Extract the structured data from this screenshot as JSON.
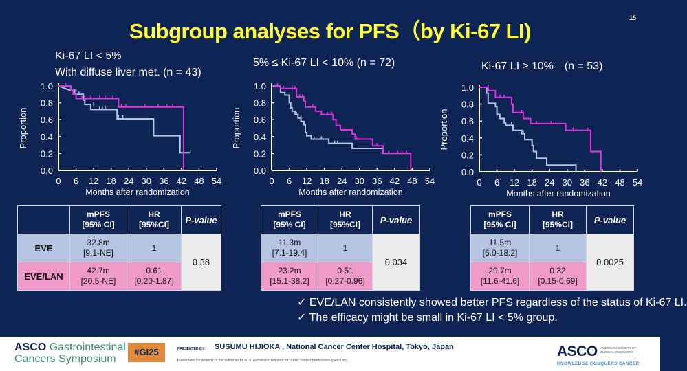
{
  "slide": {
    "title": "Subgroup analyses for PFS（by Ki-67 LI)",
    "number": "15",
    "colors": {
      "background": "#0e2454",
      "title": "#ffff33",
      "eve_line": "#b5c4e1",
      "lan_line": "#e033e0",
      "eve_row": "#b5c4e1",
      "lan_row": "#ef9ac9"
    }
  },
  "panels": [
    {
      "subtitle_line1": "Ki-67 LI < 5%",
      "subtitle_line2": "With diffuse liver met. (n = 43)",
      "table": {
        "headers": [
          "",
          "mPFS\n[95% CI]",
          "HR\n[95%CI]",
          "P-value"
        ],
        "header_mpfs_1": "mPFS",
        "header_mpfs_2": "[95% CI]",
        "header_hr_1": "HR",
        "header_hr_2": "[95%CI]",
        "header_p": "P-value",
        "eve": {
          "label": "EVE",
          "mpfs": "32.8m",
          "mpfs_ci": "[9.1-NE]",
          "hr": "1",
          "hr_ci": ""
        },
        "lan": {
          "label": "EVE/LAN",
          "mpfs": "42.7m",
          "mpfs_ci": "[20.5-NE]",
          "hr": "0.61",
          "hr_ci": "[0.20-1.87]"
        },
        "p_value": "0.38"
      }
    },
    {
      "subtitle_line1": "5% ≤ Ki-67 LI < 10% (n = 72)",
      "subtitle_line2": "",
      "table": {
        "header_mpfs_1": "mPFS",
        "header_mpfs_2": "[95% CI]",
        "header_hr_1": "HR",
        "header_hr_2": "[95%CI]",
        "header_p": "P-value",
        "eve": {
          "label": "EVE",
          "mpfs": "11.3m",
          "mpfs_ci": "[7.1-19.4]",
          "hr": "1",
          "hr_ci": ""
        },
        "lan": {
          "label": "EVE/LAN",
          "mpfs": "23.2m",
          "mpfs_ci": "[15.1-38.2]",
          "hr": "0.51",
          "hr_ci": "[0.27-0.96]"
        },
        "p_value": "0.034"
      }
    },
    {
      "subtitle_line1": "Ki-67 LI ≥ 10%　(n = 53)",
      "subtitle_line2": "",
      "table": {
        "header_mpfs_1": "mPFS",
        "header_mpfs_2": "[95% CI]",
        "header_hr_1": "HR",
        "header_hr_2": "[95%CI]",
        "header_p": "P-value",
        "eve": {
          "label": "EVE",
          "mpfs": "11.5m",
          "mpfs_ci": "[6.0-18.2]",
          "hr": "1",
          "hr_ci": ""
        },
        "lan": {
          "label": "EVE/LAN",
          "mpfs": "29.7m",
          "mpfs_ci": "[11.6-41.6]",
          "hr": "0.32",
          "hr_ci": "[0.15-0.69]"
        },
        "p_value": "0.0025"
      }
    }
  ],
  "chart_data": [
    {
      "type": "line",
      "subtype": "kaplan-meier-step",
      "title": "Ki-67 LI < 5% With diffuse liver met. (n = 43)",
      "xlabel": "Months after randomization",
      "ylabel": "Proportion",
      "xlim": [
        0,
        54
      ],
      "ylim": [
        0,
        1.0
      ],
      "xticks": [
        "0",
        "6",
        "12",
        "18",
        "24",
        "30",
        "36",
        "42",
        "48",
        "54"
      ],
      "yticks": [
        "0.0",
        "0.2",
        "0.4",
        "0.6",
        "0.8",
        "1.0"
      ],
      "series": [
        {
          "name": "EVE",
          "color": "#b5c4e1",
          "steps": [
            [
              0,
              1.0
            ],
            [
              3.8,
              0.95
            ],
            [
              5.5,
              0.95
            ],
            [
              5.5,
              0.9
            ],
            [
              8.5,
              0.9
            ],
            [
              8.5,
              0.83
            ],
            [
              9,
              0.83
            ],
            [
              9,
              0.78
            ],
            [
              11,
              0.78
            ],
            [
              11,
              0.72
            ],
            [
              20,
              0.72
            ],
            [
              20,
              0.61
            ],
            [
              32.5,
              0.61
            ],
            [
              32.5,
              0.41
            ],
            [
              41.5,
              0.41
            ],
            [
              41.5,
              0.21
            ],
            [
              45,
              0.21
            ]
          ],
          "censors": [
            [
              6,
              0.93
            ],
            [
              7,
              0.9
            ],
            [
              12,
              0.77
            ],
            [
              14,
              0.72
            ],
            [
              15,
              0.72
            ],
            [
              16,
              0.72
            ],
            [
              20.5,
              0.62
            ],
            [
              22,
              0.62
            ],
            [
              45,
              0.21
            ]
          ]
        },
        {
          "name": "EVE/LAN",
          "color": "#e033e0",
          "steps": [
            [
              0,
              1.0
            ],
            [
              4.2,
              1.0
            ],
            [
              4.2,
              0.95
            ],
            [
              5,
              0.95
            ],
            [
              5,
              0.9
            ],
            [
              6,
              0.9
            ],
            [
              6,
              0.85
            ],
            [
              20.5,
              0.85
            ],
            [
              20.5,
              0.75
            ],
            [
              42.7,
              0.75
            ],
            [
              42.7,
              0.0
            ]
          ],
          "censors": [
            [
              2.5,
              1.0
            ],
            [
              8,
              0.85
            ],
            [
              9,
              0.85
            ],
            [
              11,
              0.85
            ],
            [
              14,
              0.85
            ],
            [
              16,
              0.85
            ],
            [
              18.5,
              0.85
            ],
            [
              21.5,
              0.75
            ],
            [
              23,
              0.75
            ],
            [
              29.5,
              0.75
            ],
            [
              34,
              0.75
            ],
            [
              37,
              0.75
            ],
            [
              39,
              0.75
            ]
          ]
        }
      ]
    },
    {
      "type": "line",
      "subtype": "kaplan-meier-step",
      "title": "5% ≤ Ki-67 LI < 10% (n = 72)",
      "xlabel": "Months after randomization",
      "ylabel": "Proportion",
      "xlim": [
        0,
        54
      ],
      "ylim": [
        0,
        1.0
      ],
      "xticks": [
        "0",
        "6",
        "12",
        "18",
        "24",
        "30",
        "36",
        "42",
        "48",
        "54"
      ],
      "yticks": [
        "0.0",
        "0.2",
        "0.4",
        "0.6",
        "0.8",
        "1.0"
      ],
      "series": [
        {
          "name": "EVE",
          "color": "#b5c4e1",
          "steps": [
            [
              0,
              1.0
            ],
            [
              3,
              1.0
            ],
            [
              3,
              0.92
            ],
            [
              4.5,
              0.92
            ],
            [
              4.5,
              0.89
            ],
            [
              6,
              0.89
            ],
            [
              6,
              0.8
            ],
            [
              6.5,
              0.8
            ],
            [
              6.5,
              0.74
            ],
            [
              7,
              0.74
            ],
            [
              7,
              0.7
            ],
            [
              8,
              0.7
            ],
            [
              8,
              0.66
            ],
            [
              9,
              0.66
            ],
            [
              9,
              0.62
            ],
            [
              10,
              0.62
            ],
            [
              10,
              0.58
            ],
            [
              11,
              0.58
            ],
            [
              11,
              0.54
            ],
            [
              11.5,
              0.54
            ],
            [
              11.5,
              0.45
            ],
            [
              12,
              0.45
            ],
            [
              12,
              0.41
            ],
            [
              13.5,
              0.41
            ],
            [
              13.5,
              0.37
            ],
            [
              19.5,
              0.37
            ],
            [
              19.5,
              0.32
            ],
            [
              27.5,
              0.32
            ],
            [
              27.5,
              0.26
            ],
            [
              38,
              0.26
            ],
            [
              38,
              0.2
            ]
          ],
          "censors": [
            [
              8.5,
              0.66
            ],
            [
              10,
              0.62
            ],
            [
              14.5,
              0.37
            ],
            [
              17,
              0.37
            ],
            [
              21.5,
              0.32
            ],
            [
              22.5,
              0.32
            ]
          ]
        },
        {
          "name": "EVE/LAN",
          "color": "#e033e0",
          "steps": [
            [
              0,
              1.0
            ],
            [
              3,
              1.0
            ],
            [
              3,
              0.97
            ],
            [
              8.5,
              0.97
            ],
            [
              8.5,
              0.87
            ],
            [
              11,
              0.87
            ],
            [
              11,
              0.82
            ],
            [
              11.5,
              0.82
            ],
            [
              11.5,
              0.75
            ],
            [
              15,
              0.75
            ],
            [
              15,
              0.7
            ],
            [
              17,
              0.7
            ],
            [
              17,
              0.66
            ],
            [
              21,
              0.66
            ],
            [
              21,
              0.6
            ],
            [
              22,
              0.6
            ],
            [
              22,
              0.53
            ],
            [
              23.5,
              0.53
            ],
            [
              23.5,
              0.48
            ],
            [
              27.5,
              0.48
            ],
            [
              27.5,
              0.43
            ],
            [
              28.5,
              0.43
            ],
            [
              28.5,
              0.37
            ],
            [
              34.5,
              0.37
            ],
            [
              34.5,
              0.29
            ],
            [
              38,
              0.29
            ],
            [
              38,
              0.2
            ],
            [
              47.5,
              0.2
            ],
            [
              47.5,
              0.0
            ]
          ],
          "censors": [
            [
              2,
              1.0
            ],
            [
              4,
              0.97
            ],
            [
              7,
              0.97
            ],
            [
              8,
              0.97
            ],
            [
              9.5,
              0.87
            ],
            [
              10.5,
              0.87
            ],
            [
              14,
              0.75
            ],
            [
              19,
              0.66
            ],
            [
              20.5,
              0.66
            ],
            [
              29,
              0.37
            ],
            [
              36,
              0.29
            ],
            [
              40,
              0.2
            ],
            [
              43,
              0.2
            ],
            [
              44.5,
              0.2
            ],
            [
              46,
              0.2
            ]
          ]
        }
      ]
    },
    {
      "type": "line",
      "subtype": "kaplan-meier-step",
      "title": "Ki-67 LI ≥ 10% (n = 53)",
      "xlabel": "Months after randomization",
      "ylabel": "Proportion",
      "xlim": [
        0,
        54
      ],
      "ylim": [
        0,
        1.0
      ],
      "xticks": [
        "0",
        "6",
        "12",
        "18",
        "24",
        "30",
        "36",
        "42",
        "48",
        "54"
      ],
      "yticks": [
        "0.0",
        "0.2",
        "0.4",
        "0.6",
        "0.8",
        "1.0"
      ],
      "series": [
        {
          "name": "EVE",
          "color": "#b5c4e1",
          "steps": [
            [
              0,
              1.0
            ],
            [
              2.5,
              1.0
            ],
            [
              2.5,
              0.93
            ],
            [
              3,
              0.93
            ],
            [
              3,
              0.81
            ],
            [
              5.5,
              0.81
            ],
            [
              5.5,
              0.77
            ],
            [
              6,
              0.77
            ],
            [
              6,
              0.68
            ],
            [
              7,
              0.68
            ],
            [
              7,
              0.63
            ],
            [
              8.5,
              0.63
            ],
            [
              8.5,
              0.58
            ],
            [
              9,
              0.58
            ],
            [
              9,
              0.55
            ],
            [
              11.5,
              0.55
            ],
            [
              11.5,
              0.49
            ],
            [
              14.5,
              0.49
            ],
            [
              14.5,
              0.45
            ],
            [
              15.5,
              0.45
            ],
            [
              15.5,
              0.38
            ],
            [
              18,
              0.38
            ],
            [
              18,
              0.31
            ],
            [
              18.5,
              0.31
            ],
            [
              18.5,
              0.24
            ],
            [
              19.5,
              0.24
            ],
            [
              19.5,
              0.16
            ],
            [
              23,
              0.16
            ],
            [
              23,
              0.08
            ],
            [
              33,
              0.08
            ],
            [
              33,
              0.0
            ]
          ],
          "censors": [
            [
              11,
              0.56
            ],
            [
              15,
              0.46
            ]
          ]
        },
        {
          "name": "EVE/LAN",
          "color": "#e033e0",
          "steps": [
            [
              0,
              1.0
            ],
            [
              3,
              1.0
            ],
            [
              3,
              0.96
            ],
            [
              5.5,
              0.96
            ],
            [
              5.5,
              0.88
            ],
            [
              11,
              0.88
            ],
            [
              11,
              0.8
            ],
            [
              11.5,
              0.8
            ],
            [
              11.5,
              0.7
            ],
            [
              15,
              0.7
            ],
            [
              15,
              0.63
            ],
            [
              17.5,
              0.63
            ],
            [
              17.5,
              0.57
            ],
            [
              29.5,
              0.57
            ],
            [
              29.5,
              0.49
            ],
            [
              38,
              0.49
            ],
            [
              38,
              0.24
            ],
            [
              41.5,
              0.24
            ],
            [
              41.5,
              0.0
            ]
          ],
          "censors": [
            [
              3,
              1.0
            ],
            [
              7,
              0.88
            ],
            [
              8.5,
              0.88
            ],
            [
              13.5,
              0.7
            ],
            [
              14.5,
              0.7
            ],
            [
              19.5,
              0.57
            ],
            [
              24.5,
              0.57
            ],
            [
              32,
              0.49
            ],
            [
              37,
              0.49
            ]
          ]
        }
      ]
    }
  ],
  "bullets": [
    "✓  EVE/LAN consistently showed better PFS regardless of the status of Ki-67 LI.",
    "✓  The efficacy might be small in Ki-67 LI < 5% group."
  ],
  "footer": {
    "symposium_brand": "ASCO",
    "symposium_line1": "Gastrointestinal",
    "symposium_line2": "Cancers Symposium",
    "hashtag": "#GI25",
    "presented_by": "PRESENTED BY:",
    "presenter": "SUSUMU HIJIOKA , National Cancer Center Hospital, Tokyo, Japan",
    "disclaimer": "Presentation is property of the author and ASCO. Permission required for reuse; contact permissions@asco.org",
    "asco_logo": "ASCO",
    "asco_sub": "AMERICAN SOCIETY OF CLINICAL ONCOLOGY",
    "asco_tagline": "KNOWLEDGE CONQUERS CANCER"
  }
}
